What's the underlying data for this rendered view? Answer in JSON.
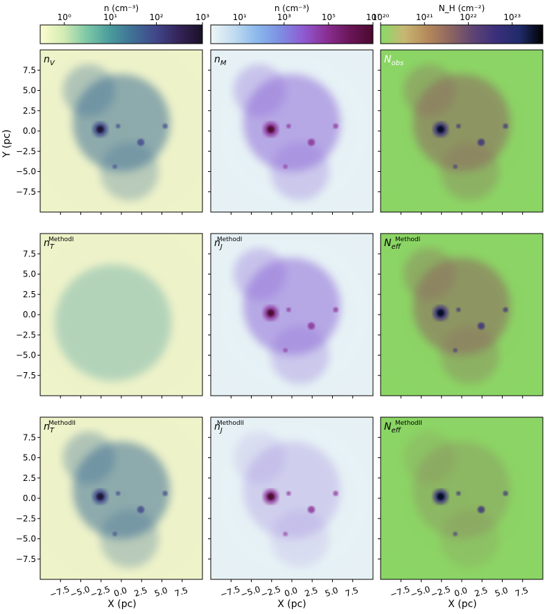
{
  "chart_data": {
    "type": "heatmap",
    "colorbars": [
      {
        "label": "n (cm⁻³)",
        "scale": "log",
        "ticks": [
          "10⁰",
          "10¹",
          "10²",
          "10³"
        ],
        "range": [
          0.3,
          1000
        ],
        "stops": [
          "#fdfdd0",
          "#d4ecb3",
          "#7dc8a6",
          "#4a9b9c",
          "#3f6f95",
          "#41468a",
          "#332358",
          "#1a1025"
        ]
      },
      {
        "label": "n (cm⁻³)",
        "scale": "log",
        "ticks": [
          "10¹",
          "10³",
          "10⁵",
          "10⁷"
        ],
        "range": [
          0.5,
          10000000
        ],
        "stops": [
          "#eef6f6",
          "#c2dcf0",
          "#8ab8ec",
          "#7d8ee2",
          "#8f5ad2",
          "#8a2f93",
          "#6a1558",
          "#4a0a2e"
        ]
      },
      {
        "label": "N_H (cm⁻²)",
        "scale": "log",
        "ticks": [
          "10²⁰",
          "10²¹",
          "10²²",
          "10²³"
        ],
        "range": [
          1e+20,
          5e+23
        ],
        "stops": [
          "#88db66",
          "#c7b773",
          "#b68a5c",
          "#8e6660",
          "#5e4474",
          "#3a2f7b",
          "#1f2b6a",
          "#000000"
        ]
      }
    ],
    "panels": [
      {
        "row": 0,
        "col": 0,
        "label": "n_V",
        "sup": ""
      },
      {
        "row": 0,
        "col": 1,
        "label": "n_M",
        "sup": ""
      },
      {
        "row": 0,
        "col": 2,
        "label": "N_obs",
        "sup": ""
      },
      {
        "row": 1,
        "col": 0,
        "label": "n_T",
        "sup": "MethodI"
      },
      {
        "row": 1,
        "col": 1,
        "label": "n_J",
        "sup": "MethodI"
      },
      {
        "row": 1,
        "col": 2,
        "label": "N_eff",
        "sup": "MethodI"
      },
      {
        "row": 2,
        "col": 0,
        "label": "n_T",
        "sup": "MethodII"
      },
      {
        "row": 2,
        "col": 1,
        "label": "n_J",
        "sup": "MethodII"
      },
      {
        "row": 2,
        "col": 2,
        "label": "N_eff",
        "sup": "MethodII"
      }
    ],
    "xlabel": "X (pc)",
    "ylabel": "Y (pc)",
    "xlim": [
      -10,
      10
    ],
    "ylim": [
      -10,
      10
    ],
    "x_ticks": [
      -7.5,
      -5.0,
      -2.5,
      0.0,
      2.5,
      5.0,
      7.5
    ],
    "y_ticks": [
      7.5,
      5.0,
      2.5,
      0.0,
      -2.5,
      -5.0,
      -7.5
    ],
    "x_tick_labels": [
      "−7.5",
      "−5.0",
      "−2.5",
      "0.0",
      "2.5",
      "5.0",
      "7.5"
    ],
    "y_tick_labels": [
      "7.5",
      "5.0",
      "2.5",
      "0.0",
      "−2.5",
      "−5.0",
      "−7.5"
    ],
    "grid": false,
    "background_colors": [
      "#fbfacd",
      "#eef6f6",
      "#88db66"
    ]
  }
}
